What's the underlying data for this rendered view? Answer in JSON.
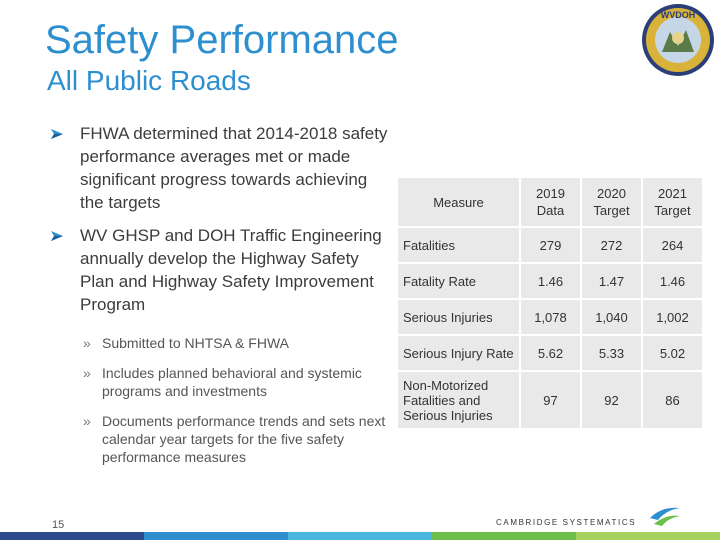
{
  "header": {
    "title": "Safety Performance",
    "subtitle": "All Public Roads"
  },
  "logo": {
    "text": "WVDOH"
  },
  "bullets": [
    {
      "text": "FHWA determined that 2014-2018 safety performance averages met or made significant progress towards achieving the targets"
    },
    {
      "text": "WV GHSP and DOH Traffic Engineering annually develop the Highway Safety Plan and Highway Safety Improvement Program"
    }
  ],
  "sub_bullets": [
    {
      "text": "Submitted to NHTSA & FHWA"
    },
    {
      "text": "Includes planned behavioral and systemic programs and investments"
    },
    {
      "text": "Documents performance trends and sets next calendar year targets for the five safety performance measures"
    }
  ],
  "table": {
    "headers": [
      "Measure",
      "2019 Data",
      "2020 Target",
      "2021 Target"
    ],
    "rows": [
      [
        "Fatalities",
        "279",
        "272",
        "264"
      ],
      [
        "Fatality Rate",
        "1.46",
        "1.47",
        "1.46"
      ],
      [
        "Serious Injuries",
        "1,078",
        "1,040",
        "1,002"
      ],
      [
        "Serious Injury Rate",
        "5.62",
        "5.33",
        "5.02"
      ],
      [
        "Non-Motorized Fatalities and Serious Injuries",
        "97",
        "92",
        "86"
      ]
    ]
  },
  "footer": {
    "page_number": "15",
    "company": "CAMBRIDGE SYSTEMATICS"
  },
  "colors": {
    "title": "#2e8fcf",
    "bullet_marker": "#2e8fcf",
    "table_cell": "#e9e9e9",
    "stripe": [
      "#2b4a8a",
      "#2e8fcf",
      "#4db6e0",
      "#6cbf4b",
      "#a4d05f"
    ]
  }
}
